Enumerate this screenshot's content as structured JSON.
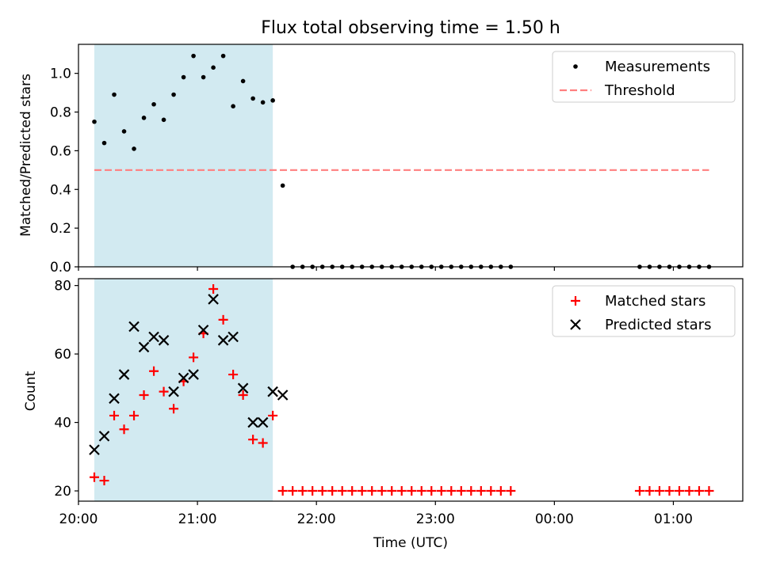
{
  "chart_data": [
    {
      "type": "scatter",
      "title": "Flux total observing time = 1.50 h",
      "xlabel": "",
      "ylabel": "Matched/Predicted stars",
      "x_type": "time",
      "xlim": [
        "20:00",
        "01:35"
      ],
      "ylim": [
        0.0,
        1.15
      ],
      "yticks": [
        "0.0",
        "0.2",
        "0.4",
        "0.6",
        "0.8",
        "1.0"
      ],
      "shaded_region": {
        "from": "20:08",
        "to": "21:38",
        "color": "#add8e6"
      },
      "legend": {
        "position": "top-right"
      },
      "series": [
        {
          "name": "Measurements",
          "marker": "dot",
          "color": "#000000",
          "x": [
            "20:08",
            "20:13",
            "20:18",
            "20:23",
            "20:28",
            "20:33",
            "20:38",
            "20:43",
            "20:48",
            "20:53",
            "20:58",
            "21:03",
            "21:08",
            "21:13",
            "21:18",
            "21:23",
            "21:28",
            "21:33",
            "21:38",
            "21:43",
            "21:48",
            "21:53",
            "21:58",
            "22:03",
            "22:08",
            "22:13",
            "22:18",
            "22:23",
            "22:28",
            "22:33",
            "22:38",
            "22:43",
            "22:48",
            "22:53",
            "22:58",
            "23:03",
            "23:08",
            "23:13",
            "23:18",
            "23:23",
            "23:28",
            "23:33",
            "23:38",
            "00:43",
            "00:48",
            "00:53",
            "00:58",
            "01:03",
            "01:08",
            "01:13",
            "01:18"
          ],
          "y": [
            0.75,
            0.64,
            0.89,
            0.7,
            0.61,
            0.77,
            0.84,
            0.76,
            0.89,
            0.98,
            1.09,
            0.98,
            1.03,
            1.09,
            0.83,
            0.96,
            0.87,
            0.85,
            0.86,
            0.42,
            0,
            0,
            0,
            0,
            0,
            0,
            0,
            0,
            0,
            0,
            0,
            0,
            0,
            0,
            0,
            0,
            0,
            0,
            0,
            0,
            0,
            0,
            0,
            0,
            0,
            0,
            0,
            0,
            0,
            0,
            0
          ]
        },
        {
          "name": "Threshold",
          "marker": "dashed-line",
          "color": "#ff7f7f",
          "x": [
            "20:08",
            "01:18"
          ],
          "y": [
            0.5,
            0.5
          ]
        }
      ]
    },
    {
      "type": "scatter",
      "title": "",
      "xlabel": "Time (UTC)",
      "ylabel": "Count",
      "x_type": "time",
      "xlim": [
        "20:00",
        "01:35"
      ],
      "ylim": [
        17,
        82
      ],
      "yticks": [
        "20",
        "40",
        "60",
        "80"
      ],
      "xticks": [
        "20:00",
        "21:00",
        "22:00",
        "23:00",
        "00:00",
        "01:00"
      ],
      "shaded_region": {
        "from": "20:08",
        "to": "21:38",
        "color": "#add8e6"
      },
      "legend": {
        "position": "top-right"
      },
      "series": [
        {
          "name": "Matched stars",
          "marker": "plus",
          "color": "#ff0000",
          "x": [
            "20:08",
            "20:13",
            "20:18",
            "20:23",
            "20:28",
            "20:33",
            "20:38",
            "20:43",
            "20:48",
            "20:53",
            "20:58",
            "21:03",
            "21:08",
            "21:13",
            "21:18",
            "21:23",
            "21:28",
            "21:33",
            "21:38",
            "21:43",
            "21:48",
            "21:53",
            "21:58",
            "22:03",
            "22:08",
            "22:13",
            "22:18",
            "22:23",
            "22:28",
            "22:33",
            "22:38",
            "22:43",
            "22:48",
            "22:53",
            "22:58",
            "23:03",
            "23:08",
            "23:13",
            "23:18",
            "23:23",
            "23:28",
            "23:33",
            "23:38",
            "00:43",
            "00:48",
            "00:53",
            "00:58",
            "01:03",
            "01:08",
            "01:13",
            "01:18"
          ],
          "y": [
            24,
            23,
            42,
            38,
            42,
            48,
            55,
            49,
            44,
            52,
            59,
            66,
            79,
            70,
            54,
            48,
            35,
            34,
            42,
            20,
            20,
            20,
            20,
            20,
            20,
            20,
            20,
            20,
            20,
            20,
            20,
            20,
            20,
            20,
            20,
            20,
            20,
            20,
            20,
            20,
            20,
            20,
            20,
            20,
            20,
            20,
            20,
            20,
            20,
            20,
            20
          ]
        },
        {
          "name": "Predicted stars",
          "marker": "x",
          "color": "#000000",
          "x": [
            "20:08",
            "20:13",
            "20:18",
            "20:23",
            "20:28",
            "20:33",
            "20:38",
            "20:43",
            "20:48",
            "20:53",
            "20:58",
            "21:03",
            "21:08",
            "21:13",
            "21:18",
            "21:23",
            "21:28",
            "21:33",
            "21:38",
            "21:43"
          ],
          "y": [
            32,
            36,
            47,
            54,
            68,
            62,
            65,
            64,
            49,
            53,
            54,
            67,
            76,
            64,
            65,
            50,
            40,
            40,
            49,
            48
          ]
        }
      ]
    }
  ]
}
